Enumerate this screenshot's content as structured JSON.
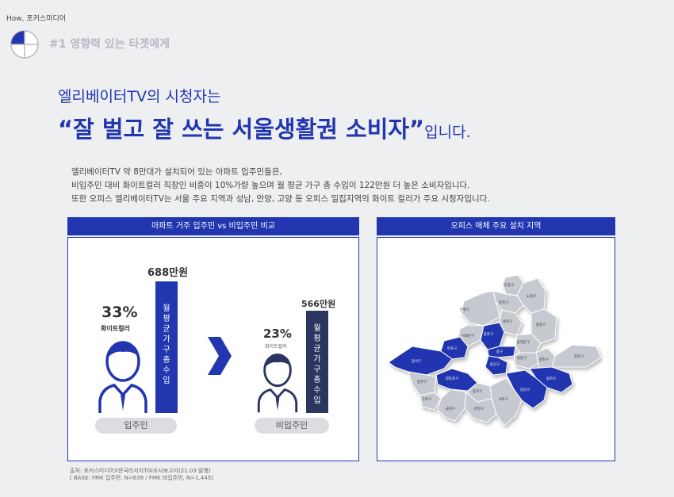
{
  "brand": "How, 포커스미디어",
  "section_title": "#1 영향력 있는 타겟에게",
  "headline": {
    "pre": "엘리베이터TV의 시청자는",
    "main": "“잘 벌고 잘 쓰는 서울생활권 소비자”",
    "suffix": "입니다."
  },
  "description": [
    "엘리베이터TV 약 8만대가 설치되어 있는 아파트 입주민들은,",
    "비입주민 대비 화이트컬러 직장인 비중이 10%가량 높으며 월 평균 가구 총 수입이 122만원 더 높은 소비자입니다.",
    "또한 오피스 엘리베이터TV는 서울 주요 지역과 성남, 안양, 고양 등 오피스 밀집지역의 화이트 컬러가 주요 시청자입니다."
  ],
  "left_panel": {
    "title": "아파트 거주 입주민 vs 비입주민 비교",
    "resident": {
      "pct": "33%",
      "pct_label": "화이트컬러",
      "income": "688만원",
      "bar_label": "월평균가구총수입",
      "label": "입주민"
    },
    "nonresident": {
      "pct": "23%",
      "pct_label": "화이트컬러",
      "income": "566만원",
      "bar_label": "월평균가구총수입",
      "label": "비입주민"
    }
  },
  "right_panel": {
    "title": "오피스 매체 주요 설치 지역",
    "districts": [
      "도봉구",
      "노원구",
      "강북구",
      "은평구",
      "성북구",
      "중랑구",
      "종로구",
      "서대문구",
      "동대문구",
      "마포구",
      "중구",
      "강서구",
      "용산구",
      "성동구",
      "광진구",
      "강동구",
      "양천구",
      "영등포구",
      "송파구",
      "강남구",
      "구로구",
      "동작구",
      "서초구",
      "금천구",
      "관악구"
    ],
    "highlight_color": "#2236b0",
    "base_color": "#c7c9d0"
  },
  "footer": [
    "출처: 포커스미디어X한국리서치TGI조사보고서(21.03 발행)",
    "[ BASE: FMK 입주민, N=639 / FMK 비입주민, N=1,445]"
  ]
}
